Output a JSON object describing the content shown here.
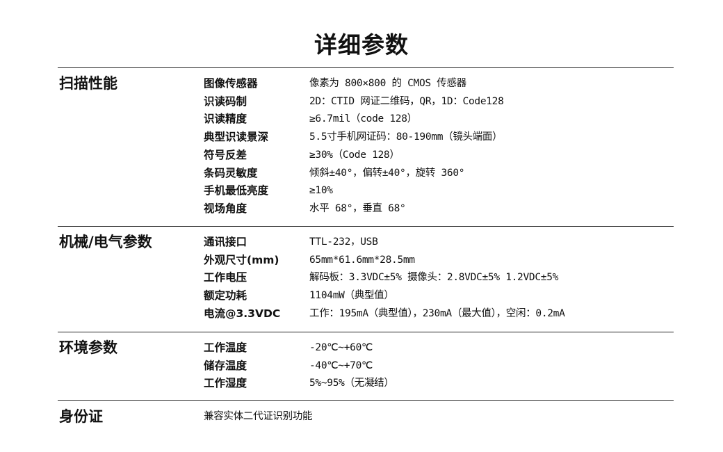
{
  "title": "详细参数",
  "sections": [
    {
      "heading": "扫描性能",
      "rows": [
        {
          "label": "图像传感器",
          "value": "像素为 800×800 的 CMOS 传感器"
        },
        {
          "label": "识读码制",
          "value": "2D：CTID 网证二维码，QR，1D：Code128"
        },
        {
          "label": "识读精度",
          "value": "≥6.7mil（code 128）"
        },
        {
          "label": "典型识读景深",
          "value": "5.5寸手机网证码：80-190mm（镜头端面）"
        },
        {
          "label": "符号反差",
          "value": "≥30%（Code 128）"
        },
        {
          "label": "条码灵敏度",
          "value": "倾斜±40°，偏转±40°，旋转 360°"
        },
        {
          "label": "手机最低亮度",
          "value": "≥10%"
        },
        {
          "label": "视场角度",
          "value": "水平 68°，垂直 68°"
        }
      ]
    },
    {
      "heading": "机械/电气参数",
      "rows": [
        {
          "label": "通讯接口",
          "value": "TTL-232，USB"
        },
        {
          "label": "外观尺寸(mm)",
          "value": "65mm*61.6mm*28.5mm"
        },
        {
          "label": "工作电压",
          "value": "解码板：3.3VDC±5% 摄像头：2.8VDC±5% 1.2VDC±5%"
        },
        {
          "label": "额定功耗",
          "value": "1104mW（典型值）"
        },
        {
          "label": "电流@3.3VDC",
          "value": "工作：195mA（典型值），230mA（最大值），空闲：0.2mA"
        }
      ]
    },
    {
      "heading": "环境参数",
      "rows": [
        {
          "label": "工作温度",
          "value": "-20℃~+60℃"
        },
        {
          "label": "储存温度",
          "value": "-40℃~+70℃"
        },
        {
          "label": "工作湿度",
          "value": "5%~95%（无凝结）"
        }
      ]
    },
    {
      "heading": "身份证",
      "text": "兼容实体二代证识别功能"
    }
  ]
}
